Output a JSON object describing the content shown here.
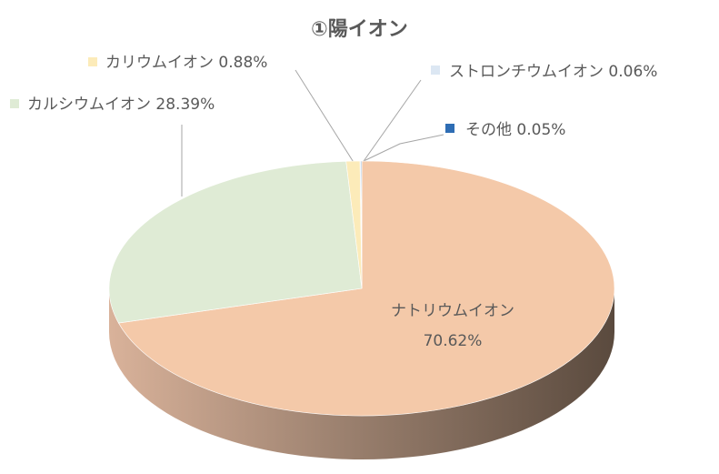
{
  "chart_data": {
    "type": "pie",
    "title": "①陽イオン",
    "style": "3d",
    "slices": [
      {
        "label": "ナトリウムイオン",
        "value": 70.62,
        "value_text": "70.62%",
        "color": "#F4C9A9"
      },
      {
        "label": "カルシウムイオン",
        "value": 28.39,
        "value_text": "28.39%",
        "color": "#DFEBD5"
      },
      {
        "label": "カリウムイオン",
        "value": 0.88,
        "value_text": "0.88%",
        "color": "#FCEBB9"
      },
      {
        "label": "ストロンチウムイオン",
        "value": 0.06,
        "value_text": "0.06%",
        "color": "#DCE7F3"
      },
      {
        "label": "その他",
        "value": 0.05,
        "value_text": "0.05%",
        "color": "#2E6DB4"
      }
    ],
    "side_color": "#B9957E"
  }
}
